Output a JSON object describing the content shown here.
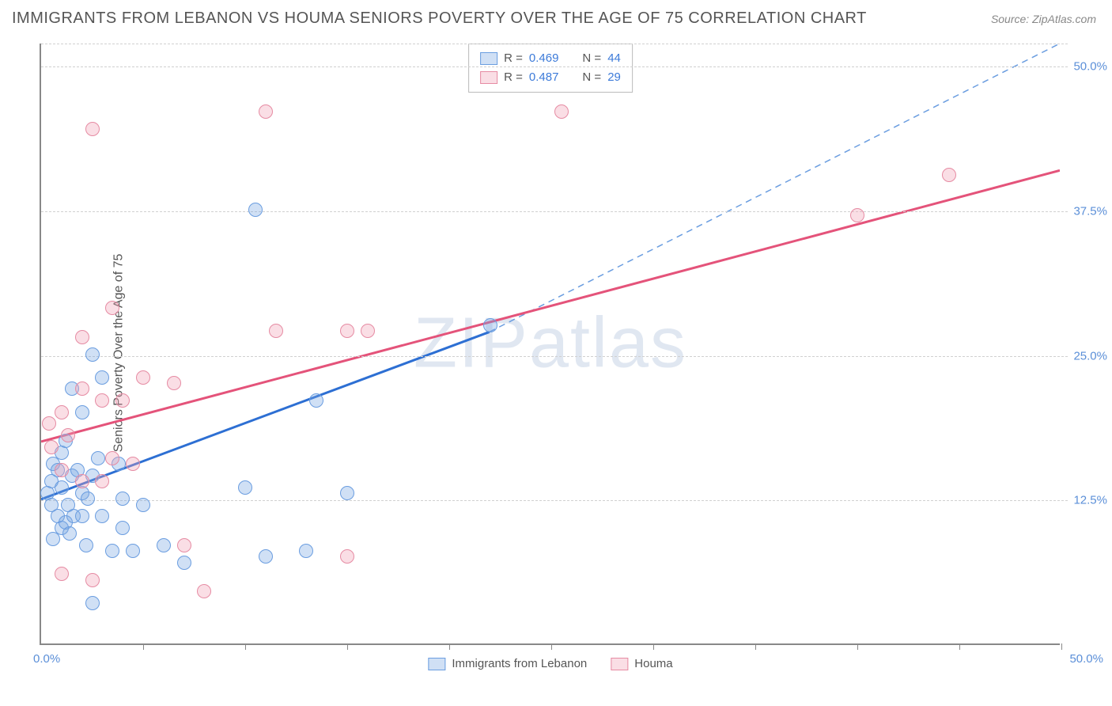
{
  "title": "IMMIGRANTS FROM LEBANON VS HOUMA SENIORS POVERTY OVER THE AGE OF 75 CORRELATION CHART",
  "source": "Source: ZipAtlas.com",
  "y_axis_label": "Seniors Poverty Over the Age of 75",
  "watermark": "ZIPatlas",
  "chart": {
    "type": "scatter",
    "xlim": [
      0,
      50
    ],
    "ylim": [
      0,
      52
    ],
    "x_tick_positions": [
      0,
      5,
      10,
      15,
      20,
      25,
      30,
      35,
      40,
      45,
      50
    ],
    "y_grid": [
      12.5,
      25.0,
      37.5,
      50.0
    ],
    "y_tick_labels": [
      "12.5%",
      "25.0%",
      "37.5%",
      "50.0%"
    ],
    "x_min_label": "0.0%",
    "x_max_label": "50.0%",
    "background_color": "#ffffff",
    "grid_color": "#d0d0d0",
    "axis_color": "#888888",
    "marker_radius": 9,
    "marker_stroke_width": 1.5,
    "series": [
      {
        "name": "Immigrants from Lebanon",
        "fill": "rgba(120,165,225,0.35)",
        "stroke": "#6a9de0",
        "R": "0.469",
        "N": "44",
        "trend": {
          "x1": 0,
          "y1": 12.5,
          "x2": 22,
          "y2": 27.0,
          "solid_color": "#2d6fd3",
          "solid_width": 3,
          "dash_x2": 50,
          "dash_y2": 52.0,
          "dash_color": "#6a9de0",
          "dash_width": 1.5
        },
        "points": [
          [
            0.3,
            13.0
          ],
          [
            0.5,
            12.0
          ],
          [
            0.5,
            14.0
          ],
          [
            0.6,
            15.5
          ],
          [
            0.8,
            11.0
          ],
          [
            1.0,
            13.5
          ],
          [
            0.8,
            15.0
          ],
          [
            1.0,
            10.0
          ],
          [
            1.2,
            10.5
          ],
          [
            1.3,
            12.0
          ],
          [
            1.4,
            9.5
          ],
          [
            1.5,
            14.5
          ],
          [
            1.6,
            11.0
          ],
          [
            1.0,
            16.5
          ],
          [
            1.8,
            15.0
          ],
          [
            2.0,
            13.0
          ],
          [
            2.0,
            11.0
          ],
          [
            2.3,
            12.5
          ],
          [
            2.2,
            8.5
          ],
          [
            2.5,
            14.5
          ],
          [
            2.5,
            25.0
          ],
          [
            2.8,
            16.0
          ],
          [
            3.0,
            23.0
          ],
          [
            3.0,
            11.0
          ],
          [
            3.5,
            8.0
          ],
          [
            3.8,
            15.5
          ],
          [
            4.0,
            12.5
          ],
          [
            4.5,
            8.0
          ],
          [
            5.0,
            12.0
          ],
          [
            6.0,
            8.5
          ],
          [
            7.0,
            7.0
          ],
          [
            2.5,
            3.5
          ],
          [
            10.0,
            13.5
          ],
          [
            10.5,
            37.5
          ],
          [
            11.0,
            7.5
          ],
          [
            13.0,
            8.0
          ],
          [
            13.5,
            21.0
          ],
          [
            15.0,
            13.0
          ],
          [
            22.0,
            27.5
          ],
          [
            1.5,
            22.0
          ],
          [
            2.0,
            20.0
          ],
          [
            1.2,
            17.5
          ],
          [
            0.6,
            9.0
          ],
          [
            4.0,
            10.0
          ]
        ]
      },
      {
        "name": "Houma",
        "fill": "rgba(240,160,180,0.35)",
        "stroke": "#e68ba3",
        "R": "0.487",
        "N": "29",
        "trend": {
          "x1": 0,
          "y1": 17.5,
          "x2": 50,
          "y2": 41.0,
          "solid_color": "#e4537a",
          "solid_width": 3
        },
        "points": [
          [
            0.4,
            19.0
          ],
          [
            0.5,
            17.0
          ],
          [
            1.0,
            20.0
          ],
          [
            1.0,
            15.0
          ],
          [
            1.3,
            18.0
          ],
          [
            2.0,
            14.0
          ],
          [
            2.0,
            22.0
          ],
          [
            2.5,
            44.5
          ],
          [
            2.0,
            26.5
          ],
          [
            3.0,
            21.0
          ],
          [
            3.0,
            14.0
          ],
          [
            3.5,
            16.0
          ],
          [
            3.5,
            29.0
          ],
          [
            4.0,
            21.0
          ],
          [
            4.5,
            15.5
          ],
          [
            5.0,
            23.0
          ],
          [
            7.0,
            8.5
          ],
          [
            6.5,
            22.5
          ],
          [
            8.0,
            4.5
          ],
          [
            11.0,
            46.0
          ],
          [
            11.5,
            27.0
          ],
          [
            15.0,
            7.5
          ],
          [
            16.0,
            27.0
          ],
          [
            25.5,
            46.0
          ],
          [
            40.0,
            37.0
          ],
          [
            44.5,
            40.5
          ],
          [
            2.5,
            5.5
          ],
          [
            1.0,
            6.0
          ],
          [
            15.0,
            27.0
          ]
        ]
      }
    ]
  },
  "legend_top": {
    "r_label": "R =",
    "n_label": "N ="
  },
  "legend_bottom": [
    {
      "label": "Immigrants from Lebanon",
      "fill": "rgba(120,165,225,0.35)",
      "stroke": "#6a9de0"
    },
    {
      "label": "Houma",
      "fill": "rgba(240,160,180,0.35)",
      "stroke": "#e68ba3"
    }
  ]
}
